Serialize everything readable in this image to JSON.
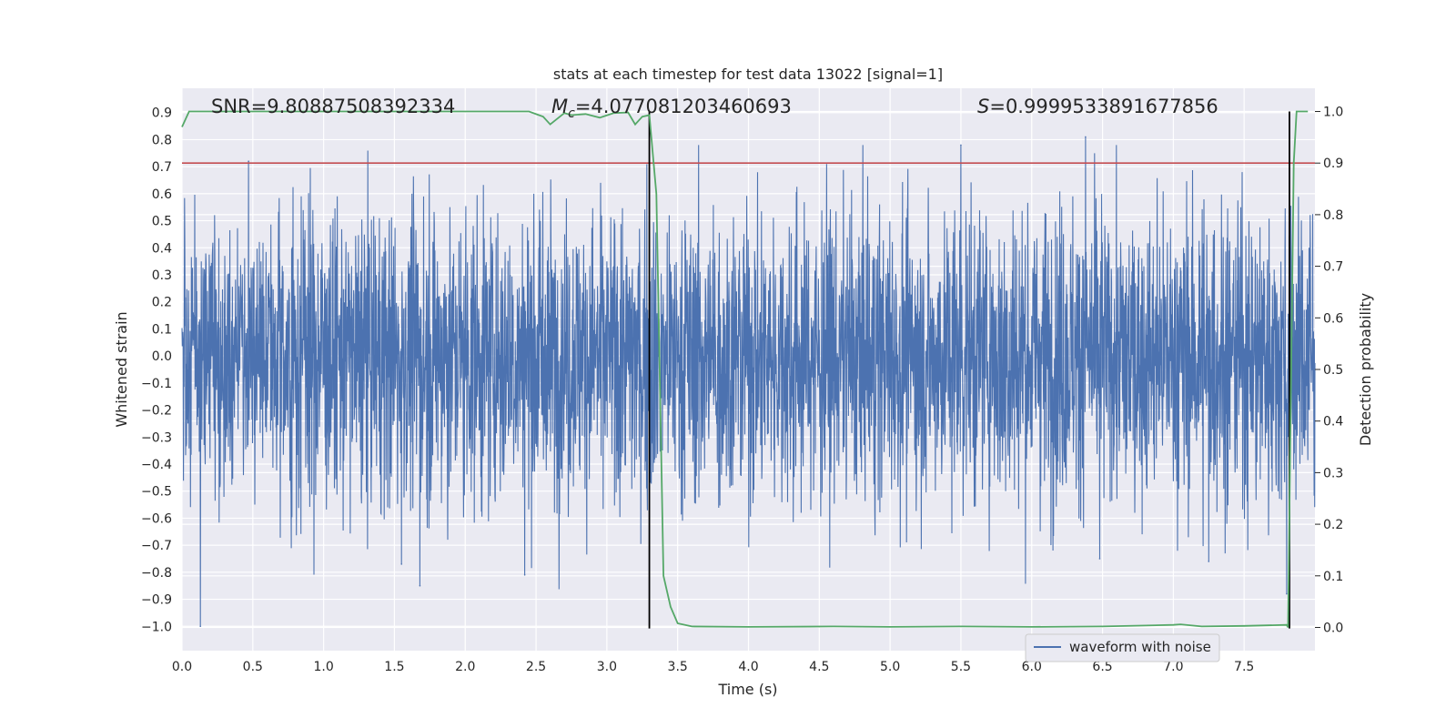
{
  "chart_data": {
    "type": "line",
    "title": "stats at each timestep for test data 13022 [signal=1]",
    "xlabel": "Time (s)",
    "ylabel": "Whitened strain",
    "y2label": "Detection probability",
    "xlim": [
      0.0,
      8.0
    ],
    "ylim": [
      -1.09,
      0.99
    ],
    "y2lim": [
      -0.045,
      1.045
    ],
    "xticks": [
      "0.0",
      "0.5",
      "1.0",
      "1.5",
      "2.0",
      "2.5",
      "3.0",
      "3.5",
      "4.0",
      "4.5",
      "5.0",
      "5.5",
      "6.0",
      "6.5",
      "7.0",
      "7.5"
    ],
    "yticks": [
      "0.9",
      "0.8",
      "0.7",
      "0.6",
      "0.5",
      "0.4",
      "0.3",
      "0.2",
      "0.1",
      "0.0",
      "−0.1",
      "−0.2",
      "−0.3",
      "−0.4",
      "−0.5",
      "−0.6",
      "−0.7",
      "−0.8",
      "−0.9",
      "−1.0"
    ],
    "y2ticks": [
      "1.0",
      "0.9",
      "0.8",
      "0.7",
      "0.6",
      "0.5",
      "0.4",
      "0.3",
      "0.2",
      "0.1",
      "0.0"
    ],
    "grid": true,
    "legend_position": "lower-right",
    "annotations": {
      "snr": "SNR=9.80887508392334",
      "mc_symbol": "M",
      "mc_sub": "c",
      "mc_value": "=4.077081203460693",
      "s_symbol": "S",
      "s_value": "=0.9999533891677856"
    },
    "threshold_line": {
      "y2": 0.9,
      "color": "#c44e52"
    },
    "vertical_markers": [
      3.3,
      7.82
    ],
    "series": [
      {
        "name": "waveform with noise",
        "axis": "left",
        "color": "#4c72b0",
        "typical_amplitude": 0.45,
        "notable_peaks": [
          {
            "x": 0.13,
            "y": -1.0
          },
          {
            "x": 0.47,
            "y": 0.72
          },
          {
            "x": 1.55,
            "y": -0.77
          },
          {
            "x": 1.68,
            "y": -0.85
          },
          {
            "x": 2.42,
            "y": -0.81
          },
          {
            "x": 5.5,
            "y": 0.78
          },
          {
            "x": 6.38,
            "y": 0.81
          },
          {
            "x": 6.48,
            "y": -0.75
          },
          {
            "x": 7.25,
            "y": -0.76
          },
          {
            "x": 7.8,
            "y": -0.88
          }
        ]
      },
      {
        "axis": "right",
        "color": "#55a868",
        "x": [
          0.0,
          0.05,
          0.5,
          1.0,
          1.5,
          2.0,
          2.45,
          2.55,
          2.6,
          2.7,
          2.75,
          2.85,
          2.95,
          3.05,
          3.15,
          3.2,
          3.25,
          3.3,
          3.35,
          3.4,
          3.45,
          3.5,
          3.6,
          4.0,
          4.6,
          5.0,
          5.5,
          6.0,
          6.5,
          7.0,
          7.05,
          7.2,
          7.5,
          7.8,
          7.81,
          7.85,
          7.87,
          7.9,
          7.95
        ],
        "values": [
          0.97,
          1.0,
          1.0,
          1.0,
          1.0,
          1.0,
          1.0,
          0.99,
          0.975,
          0.997,
          0.993,
          0.995,
          0.988,
          0.997,
          0.998,
          0.975,
          0.99,
          0.993,
          0.84,
          0.1,
          0.04,
          0.008,
          0.002,
          0.001,
          0.002,
          0.001,
          0.002,
          0.001,
          0.002,
          0.005,
          0.006,
          0.002,
          0.003,
          0.005,
          0.0,
          0.9,
          1.0,
          1.0,
          1.0
        ]
      }
    ]
  }
}
